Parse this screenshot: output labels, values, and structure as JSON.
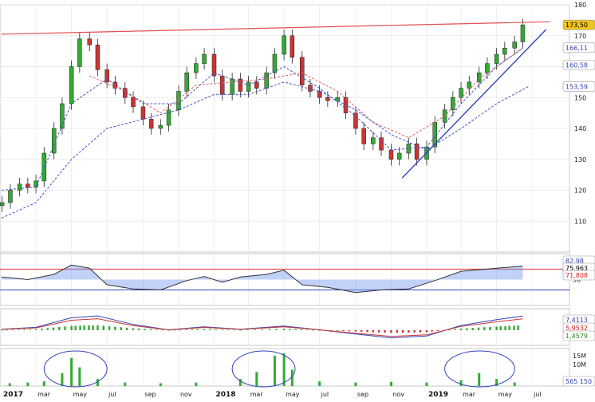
{
  "chart_data": [
    {
      "type": "candlestick",
      "panel": "price",
      "ylim": [
        100,
        180
      ],
      "y_ticks": [
        110,
        120,
        130,
        140,
        150,
        160,
        170,
        180
      ],
      "price_badges": [
        {
          "value": "173,50",
          "y": 173.5,
          "bg": "#f0c419",
          "fg": "#000000"
        },
        {
          "value": "166,11",
          "y": 166.11,
          "bg": "#ffffff",
          "fg": "#3344aa"
        },
        {
          "value": "160,58",
          "y": 160.58,
          "bg": "#ffffff",
          "fg": "#3344aa"
        },
        {
          "value": "153,59",
          "y": 153.59,
          "bg": "#ffffff",
          "fg": "#3344aa"
        }
      ],
      "resistance_line": {
        "from": [
          "2017-01-01",
          170.5
        ],
        "to": [
          "2019-08-01",
          174.5
        ],
        "color": "#e05050"
      },
      "trend_line": {
        "from": [
          "2018-11-20",
          124
        ],
        "to": [
          "2019-07-25",
          172
        ],
        "color": "#3344bb"
      },
      "closes": [
        {
          "date": "2017-01-02",
          "close": 116
        },
        {
          "date": "2017-01-16",
          "close": 120
        },
        {
          "date": "2017-02-01",
          "close": 122
        },
        {
          "date": "2017-02-15",
          "close": 121
        },
        {
          "date": "2017-03-01",
          "close": 123
        },
        {
          "date": "2017-03-15",
          "close": 132
        },
        {
          "date": "2017-04-01",
          "close": 140
        },
        {
          "date": "2017-04-15",
          "close": 148
        },
        {
          "date": "2017-05-01",
          "close": 160
        },
        {
          "date": "2017-05-15",
          "close": 169
        },
        {
          "date": "2017-06-01",
          "close": 167
        },
        {
          "date": "2017-06-15",
          "close": 159
        },
        {
          "date": "2017-07-01",
          "close": 155
        },
        {
          "date": "2017-07-15",
          "close": 153
        },
        {
          "date": "2017-08-01",
          "close": 150
        },
        {
          "date": "2017-08-15",
          "close": 147
        },
        {
          "date": "2017-09-01",
          "close": 143
        },
        {
          "date": "2017-09-15",
          "close": 140
        },
        {
          "date": "2017-10-01",
          "close": 141
        },
        {
          "date": "2017-10-15",
          "close": 146
        },
        {
          "date": "2017-11-01",
          "close": 152
        },
        {
          "date": "2017-11-15",
          "close": 158
        },
        {
          "date": "2017-12-01",
          "close": 161
        },
        {
          "date": "2017-12-15",
          "close": 164
        },
        {
          "date": "2018-01-01",
          "close": 157
        },
        {
          "date": "2018-01-15",
          "close": 151
        },
        {
          "date": "2018-02-01",
          "close": 156
        },
        {
          "date": "2018-02-15",
          "close": 152
        },
        {
          "date": "2018-03-01",
          "close": 155
        },
        {
          "date": "2018-03-15",
          "close": 153
        },
        {
          "date": "2018-04-01",
          "close": 158
        },
        {
          "date": "2018-04-15",
          "close": 164
        },
        {
          "date": "2018-05-01",
          "close": 170
        },
        {
          "date": "2018-05-15",
          "close": 163
        },
        {
          "date": "2018-06-01",
          "close": 154
        },
        {
          "date": "2018-06-15",
          "close": 152
        },
        {
          "date": "2018-07-01",
          "close": 150
        },
        {
          "date": "2018-07-15",
          "close": 149
        },
        {
          "date": "2018-08-01",
          "close": 150
        },
        {
          "date": "2018-08-15",
          "close": 145
        },
        {
          "date": "2018-09-01",
          "close": 140
        },
        {
          "date": "2018-09-15",
          "close": 135
        },
        {
          "date": "2018-10-01",
          "close": 137
        },
        {
          "date": "2018-10-15",
          "close": 133
        },
        {
          "date": "2018-11-01",
          "close": 130
        },
        {
          "date": "2018-11-15",
          "close": 132
        },
        {
          "date": "2018-12-01",
          "close": 135
        },
        {
          "date": "2018-12-15",
          "close": 130
        },
        {
          "date": "2019-01-01",
          "close": 134
        },
        {
          "date": "2019-01-15",
          "close": 142
        },
        {
          "date": "2019-02-01",
          "close": 146
        },
        {
          "date": "2019-02-15",
          "close": 150
        },
        {
          "date": "2019-03-01",
          "close": 153
        },
        {
          "date": "2019-03-15",
          "close": 155
        },
        {
          "date": "2019-04-01",
          "close": 158
        },
        {
          "date": "2019-04-15",
          "close": 161
        },
        {
          "date": "2019-05-01",
          "close": 164
        },
        {
          "date": "2019-05-15",
          "close": 166
        },
        {
          "date": "2019-06-01",
          "close": 168
        },
        {
          "date": "2019-06-15",
          "close": 173.5
        }
      ],
      "series_ma_red": [
        [
          "2017-06-01",
          157
        ],
        [
          "2017-08-01",
          152
        ],
        [
          "2017-10-01",
          145
        ],
        [
          "2017-12-01",
          154
        ],
        [
          "2018-02-01",
          155
        ],
        [
          "2018-04-01",
          156
        ],
        [
          "2018-06-01",
          158
        ],
        [
          "2018-08-01",
          152
        ],
        [
          "2018-10-01",
          142
        ],
        [
          "2018-12-01",
          137
        ],
        [
          "2019-02-01",
          144
        ],
        [
          "2019-04-01",
          156
        ],
        [
          "2019-06-15",
          166
        ]
      ],
      "series_ma_blue_short": [
        [
          "2017-01-01",
          120
        ],
        [
          "2017-03-01",
          121
        ],
        [
          "2017-05-01",
          148
        ],
        [
          "2017-07-01",
          156
        ],
        [
          "2017-09-01",
          148
        ],
        [
          "2017-11-01",
          148
        ],
        [
          "2018-01-01",
          158
        ],
        [
          "2018-03-01",
          154
        ],
        [
          "2018-05-01",
          160
        ],
        [
          "2018-07-01",
          153
        ],
        [
          "2018-09-01",
          144
        ],
        [
          "2018-11-01",
          133
        ],
        [
          "2019-01-01",
          134
        ],
        [
          "2019-03-01",
          148
        ],
        [
          "2019-05-01",
          160
        ],
        [
          "2019-06-15",
          166
        ]
      ],
      "series_ma_blue_long": [
        [
          "2017-01-01",
          111
        ],
        [
          "2017-03-01",
          116
        ],
        [
          "2017-05-01",
          130
        ],
        [
          "2017-07-01",
          140
        ],
        [
          "2017-09-01",
          143
        ],
        [
          "2017-11-01",
          146
        ],
        [
          "2018-01-01",
          151
        ],
        [
          "2018-03-01",
          151
        ],
        [
          "2018-05-01",
          155
        ],
        [
          "2018-07-01",
          152
        ],
        [
          "2018-09-01",
          146
        ],
        [
          "2018-11-01",
          138
        ],
        [
          "2019-01-01",
          133
        ],
        [
          "2019-03-01",
          140
        ],
        [
          "2019-05-01",
          148
        ],
        [
          "2019-06-25",
          153.6
        ]
      ]
    },
    {
      "type": "line",
      "panel": "oscillator",
      "ylim": [
        0,
        100
      ],
      "y_ticks": [
        50
      ],
      "level_line": 70,
      "badges": [
        {
          "value": "82,98",
          "bg": "#ffffff",
          "fg": "#3344aa"
        },
        {
          "value": "75,963",
          "bg": "#ffffff",
          "fg": "#000000"
        },
        {
          "value": "71,808",
          "bg": "#ffffff",
          "fg": "#cc2222"
        }
      ],
      "values": [
        [
          "2017-01-01",
          55
        ],
        [
          "2017-02-15",
          50
        ],
        [
          "2017-04-01",
          60
        ],
        [
          "2017-05-01",
          78
        ],
        [
          "2017-06-01",
          72
        ],
        [
          "2017-07-01",
          40
        ],
        [
          "2017-08-15",
          32
        ],
        [
          "2017-10-01",
          30
        ],
        [
          "2017-11-15",
          48
        ],
        [
          "2017-12-15",
          56
        ],
        [
          "2018-01-15",
          45
        ],
        [
          "2018-02-15",
          55
        ],
        [
          "2018-04-01",
          60
        ],
        [
          "2018-05-01",
          68
        ],
        [
          "2018-06-01",
          40
        ],
        [
          "2018-07-15",
          35
        ],
        [
          "2018-09-01",
          25
        ],
        [
          "2018-10-15",
          30
        ],
        [
          "2018-12-01",
          32
        ],
        [
          "2019-01-15",
          48
        ],
        [
          "2019-03-01",
          66
        ],
        [
          "2019-05-01",
          72
        ],
        [
          "2019-06-15",
          76
        ]
      ]
    },
    {
      "type": "bar",
      "panel": "macd",
      "badges": [
        {
          "value": "7,4113",
          "bg": "#ffffff",
          "fg": "#3344aa"
        },
        {
          "value": "5,9532",
          "bg": "#ffffff",
          "fg": "#cc2222"
        },
        {
          "value": "1,4579",
          "bg": "#ffffff",
          "fg": "#228822"
        }
      ],
      "line_values": [
        [
          "2017-01-01",
          0.5
        ],
        [
          "2017-03-01",
          1.5
        ],
        [
          "2017-05-01",
          6.5
        ],
        [
          "2017-06-15",
          7.5
        ],
        [
          "2017-08-15",
          3.0
        ],
        [
          "2017-10-15",
          0.2
        ],
        [
          "2017-12-15",
          1.8
        ],
        [
          "2018-02-15",
          0.5
        ],
        [
          "2018-05-01",
          2.2
        ],
        [
          "2018-07-01",
          0.2
        ],
        [
          "2018-09-01",
          -2.0
        ],
        [
          "2018-11-01",
          -4.0
        ],
        [
          "2019-01-01",
          -3.0
        ],
        [
          "2019-03-01",
          2.5
        ],
        [
          "2019-05-01",
          5.5
        ],
        [
          "2019-06-15",
          7.4
        ]
      ]
    },
    {
      "type": "bar",
      "panel": "volume",
      "y_ticks_labels": [
        "15M",
        "10M"
      ],
      "badge": {
        "value": "565 150",
        "bg": "#ffffff",
        "fg": "#3344aa"
      },
      "highlight_ellipses": [
        {
          "from": "2017-03-15",
          "to": "2017-07-01"
        },
        {
          "from": "2018-02-01",
          "to": "2018-05-20"
        },
        {
          "from": "2019-02-01",
          "to": "2019-06-01"
        }
      ],
      "values": [
        [
          "2017-01-15",
          1.2
        ],
        [
          "2017-02-15",
          1.5
        ],
        [
          "2017-03-15",
          2.0
        ],
        [
          "2017-04-15",
          5.5
        ],
        [
          "2017-05-01",
          12.0
        ],
        [
          "2017-05-15",
          8.0
        ],
        [
          "2017-06-15",
          3.0
        ],
        [
          "2017-08-01",
          1.5
        ],
        [
          "2017-10-01",
          1.2
        ],
        [
          "2017-12-01",
          1.5
        ],
        [
          "2018-02-15",
          3.0
        ],
        [
          "2018-03-15",
          6.0
        ],
        [
          "2018-04-15",
          13.0
        ],
        [
          "2018-05-01",
          14.0
        ],
        [
          "2018-05-15",
          7.0
        ],
        [
          "2018-07-01",
          2.0
        ],
        [
          "2018-09-01",
          1.5
        ],
        [
          "2018-11-01",
          1.8
        ],
        [
          "2019-01-01",
          1.5
        ],
        [
          "2019-03-01",
          2.5
        ],
        [
          "2019-04-01",
          5.5
        ],
        [
          "2019-05-01",
          3.0
        ],
        [
          "2019-06-01",
          1.5
        ]
      ]
    }
  ],
  "x_axis": {
    "labels": [
      {
        "date": "2017-01-01",
        "text": "2017",
        "bold": true
      },
      {
        "date": "2017-03-01",
        "text": "mar",
        "bold": false
      },
      {
        "date": "2017-05-01",
        "text": "may",
        "bold": false
      },
      {
        "date": "2017-07-01",
        "text": "jul",
        "bold": false
      },
      {
        "date": "2017-09-01",
        "text": "sep",
        "bold": false
      },
      {
        "date": "2017-11-01",
        "text": "nov",
        "bold": false
      },
      {
        "date": "2018-01-01",
        "text": "2018",
        "bold": true
      },
      {
        "date": "2018-03-01",
        "text": "mar",
        "bold": false
      },
      {
        "date": "2018-05-01",
        "text": "may",
        "bold": false
      },
      {
        "date": "2018-07-01",
        "text": "jul",
        "bold": false
      },
      {
        "date": "2018-09-01",
        "text": "sep",
        "bold": false
      },
      {
        "date": "2018-11-01",
        "text": "nov",
        "bold": false
      },
      {
        "date": "2019-01-01",
        "text": "2019",
        "bold": true
      },
      {
        "date": "2019-03-01",
        "text": "mar",
        "bold": false
      },
      {
        "date": "2019-05-01",
        "text": "may",
        "bold": false
      },
      {
        "date": "2019-07-01",
        "text": "jul",
        "bold": false
      }
    ],
    "range": [
      "2017-01-01",
      "2019-08-15"
    ]
  },
  "colors": {
    "up": "#33aa33",
    "down": "#cc3333",
    "ma_red": "#e06060",
    "ma_blue": "#4455cc",
    "grid": "#e6e6e6",
    "volume_bar": "#33aa33",
    "volume_ellipse": "#3344bb"
  }
}
